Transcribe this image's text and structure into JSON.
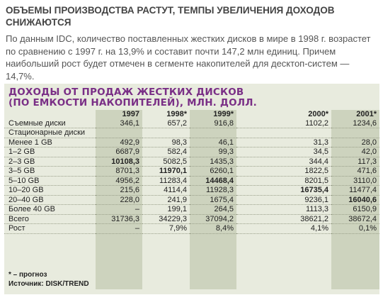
{
  "article": {
    "headline": "Объемы производства растут, темпы увеличения доходов снижаются",
    "lead": "По данным IDC, количество поставленных жестких дисков в мире в 1998 г. возрастет по сравнению с 1997 г. на 13,9% и составит почти 147,2 млн единиц. Причем наибольший рост будет отмечен в сегменте накопителей для десктоп-систем — 14,7%."
  },
  "figure": {
    "title_line1": "Доходы от продаж жестких дисков",
    "title_line2": "(по емкости накопителей), млн. долл.",
    "footnote": "* – прогноз",
    "source": "Источник: DISK/TREND"
  },
  "table": {
    "columns": [
      "1997",
      "1998*",
      "1999*",
      "2000*",
      "2001*"
    ],
    "rows": [
      {
        "label": "Съемные диски",
        "values": [
          "346,1",
          "657,2",
          "916,8",
          "1102,2",
          "1234,6"
        ],
        "bold": -1
      },
      {
        "label": "Стационарные диски",
        "values": [
          "",
          "",
          "",
          "",
          ""
        ],
        "bold": -1
      },
      {
        "label": "Менее 1 GB",
        "values": [
          "492,9",
          "98,3",
          "46,1",
          "31,3",
          "28,0"
        ],
        "bold": -1
      },
      {
        "label": "1–2 GB",
        "values": [
          "6687,9",
          "582,4",
          "99,3",
          "34,5",
          "42,0"
        ],
        "bold": -1
      },
      {
        "label": "2–3 GB",
        "values": [
          "10108,3",
          "5082,5",
          "1435,3",
          "344,4",
          "117,3"
        ],
        "bold": 0
      },
      {
        "label": "3–5 GB",
        "values": [
          "8701,3",
          "11970,1",
          "6260,1",
          "1822,5",
          "471,6"
        ],
        "bold": 1
      },
      {
        "label": "5–10 GB",
        "values": [
          "4956,2",
          "11283,4",
          "14468,4",
          "8201,5",
          "3110,0"
        ],
        "bold": 2
      },
      {
        "label": "10–20 GB",
        "values": [
          "215,6",
          "4114,4",
          "11928,3",
          "16735,4",
          "11477,4"
        ],
        "bold": 3
      },
      {
        "label": "20–40 GB",
        "values": [
          "228,0",
          "241,9",
          "1675,4",
          "9236,1",
          "16040,6"
        ],
        "bold": 4
      },
      {
        "label": "Более 40 GB",
        "values": [
          "–",
          "199,1",
          "264,5",
          "1113,3",
          "6150,9"
        ],
        "bold": -1
      },
      {
        "label": "Всего",
        "values": [
          "31736,3",
          "34229,3",
          "37094,2",
          "38621,2",
          "38672,4"
        ],
        "bold": -1
      },
      {
        "label": "Рост",
        "values": [
          "–",
          "7,9%",
          "8,4%",
          "4,1%",
          "0,1%"
        ],
        "bold": -1
      }
    ]
  }
}
